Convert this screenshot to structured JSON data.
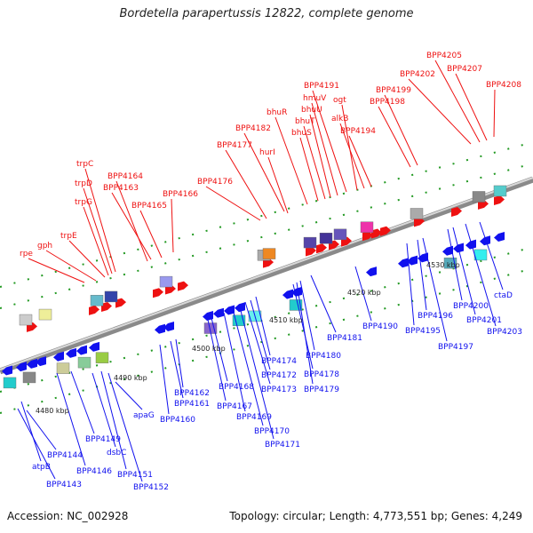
{
  "title": "Bordetella parapertussis 12822, complete genome",
  "footer": {
    "accession": "Accession: NC_002928",
    "stats": "Topology: circular; Length: 4,773,551 bp; Genes: 4,249"
  },
  "colors": {
    "top_strand": "#ee1111",
    "bottom_strand": "#1111ee",
    "backbone": "#9a9a9a",
    "ticks": "#228822"
  },
  "scale_labels": [
    "4480 kbp",
    "4490 kbp",
    "4500 kbp",
    "4510 kbp",
    "4520 kbp",
    "4530 kbp"
  ],
  "top_labels": [
    "rpe",
    "gph",
    "trpE",
    "trpG",
    "trpD",
    "trpC",
    "BPP4164",
    "BPP4163",
    "BPP4165",
    "BPP4166",
    "BPP4176",
    "BPP4177",
    "hurI",
    "BPP4182",
    "bhuR",
    "bhuS",
    "bhuT",
    "bhuU",
    "hmuV",
    "BPP4191",
    "ogt",
    "alkB",
    "BPP4194",
    "BPP4198",
    "BPP4199",
    "BPP4202",
    "BPP4205",
    "BPP4207",
    "BPP4208"
  ],
  "bottom_labels": [
    "atpB",
    "BPP4143",
    "BPP4144",
    "BPP4146",
    "BPP4149",
    "dsbC",
    "BPP4151",
    "BPP4152",
    "apaG",
    "BPP4160",
    "BPP4161",
    "BPP4162",
    "BPP4167",
    "BPP4168",
    "BPP4169",
    "BPP4170",
    "BPP4171",
    "BPP4172",
    "BPP4173",
    "BPP4174",
    "BPP4178",
    "BPP4179",
    "BPP4180",
    "BPP4181",
    "BPP4190",
    "BPP4195",
    "BPP4196",
    "BPP4197",
    "BPP4200",
    "BPP4201",
    "BPP4203",
    "ctaD"
  ]
}
